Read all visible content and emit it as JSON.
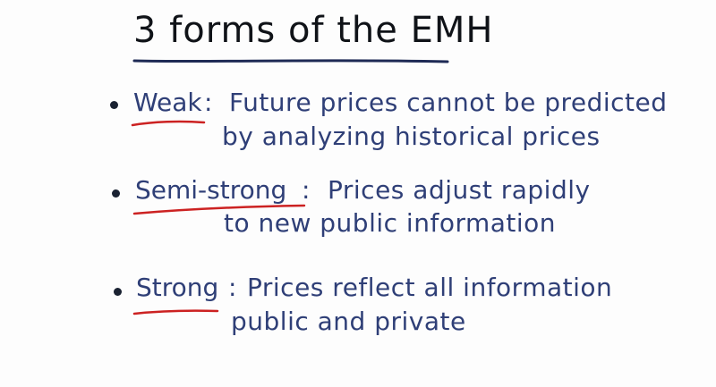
{
  "title": "3 forms of the EMH",
  "colors": {
    "ink_title": "#101318",
    "ink_text": "#2f3f77",
    "underline_title": "#1e2a55",
    "underline_term": "#cc2222"
  },
  "items": [
    {
      "term": "Weak",
      "lines": [
        "Future prices cannot be predicted",
        "by analyzing historical prices"
      ]
    },
    {
      "term": "Semi-strong",
      "lines": [
        "Prices adjust rapidly",
        "to new public information"
      ]
    },
    {
      "term": "Strong",
      "lines": [
        "Prices reflect all information",
        "public and private"
      ]
    }
  ]
}
